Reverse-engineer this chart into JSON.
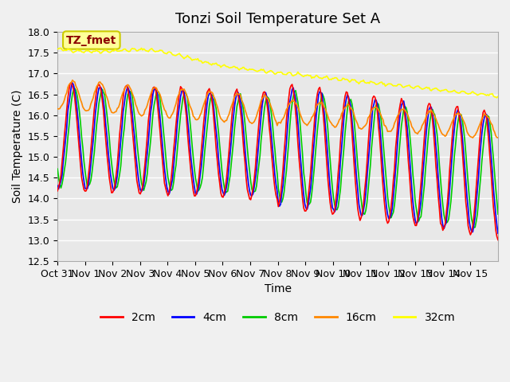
{
  "title": "Tonzi Soil Temperature Set A",
  "xlabel": "Time",
  "ylabel": "Soil Temperature (C)",
  "annotation_label": "TZ_fmet",
  "annotation_color": "#8B0000",
  "annotation_bg": "#FFFF99",
  "annotation_border": "#CCCC00",
  "ylim": [
    12.5,
    18.0
  ],
  "yticks": [
    12.5,
    13.0,
    13.5,
    14.0,
    14.5,
    15.0,
    15.5,
    16.0,
    16.5,
    17.0,
    17.5,
    18.0
  ],
  "xtick_labels": [
    "Oct 31",
    "Nov 1",
    "Nov 2",
    "Nov 3",
    "Nov 4",
    "Nov 5",
    "Nov 6",
    "Nov 7",
    "Nov 8",
    "Nov 9",
    "Nov 10",
    "Nov 11",
    "Nov 12",
    "Nov 13",
    "Nov 14",
    "Nov 15"
  ],
  "legend_labels": [
    "2cm",
    "4cm",
    "8cm",
    "16cm",
    "32cm"
  ],
  "line_colors": [
    "#FF0000",
    "#0000FF",
    "#00CC00",
    "#FF8800",
    "#FFFF00"
  ],
  "bg_color": "#E8E8E8",
  "plot_bg_color": "#E8E8E8",
  "grid_color": "#FFFFFF",
  "title_fontsize": 13,
  "label_fontsize": 10,
  "tick_fontsize": 9
}
